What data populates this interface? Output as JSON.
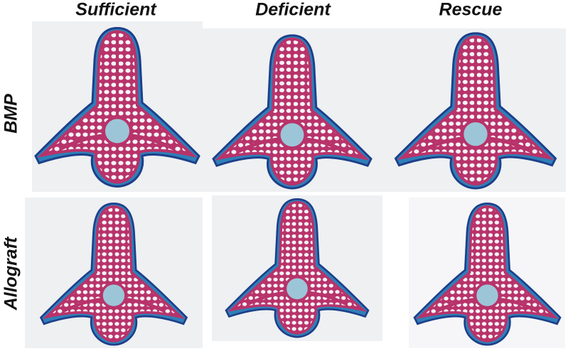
{
  "columns": [
    "Sufficient",
    "Deficient",
    "Rescue"
  ],
  "rows": [
    "BMP",
    "Allograft"
  ]
}
